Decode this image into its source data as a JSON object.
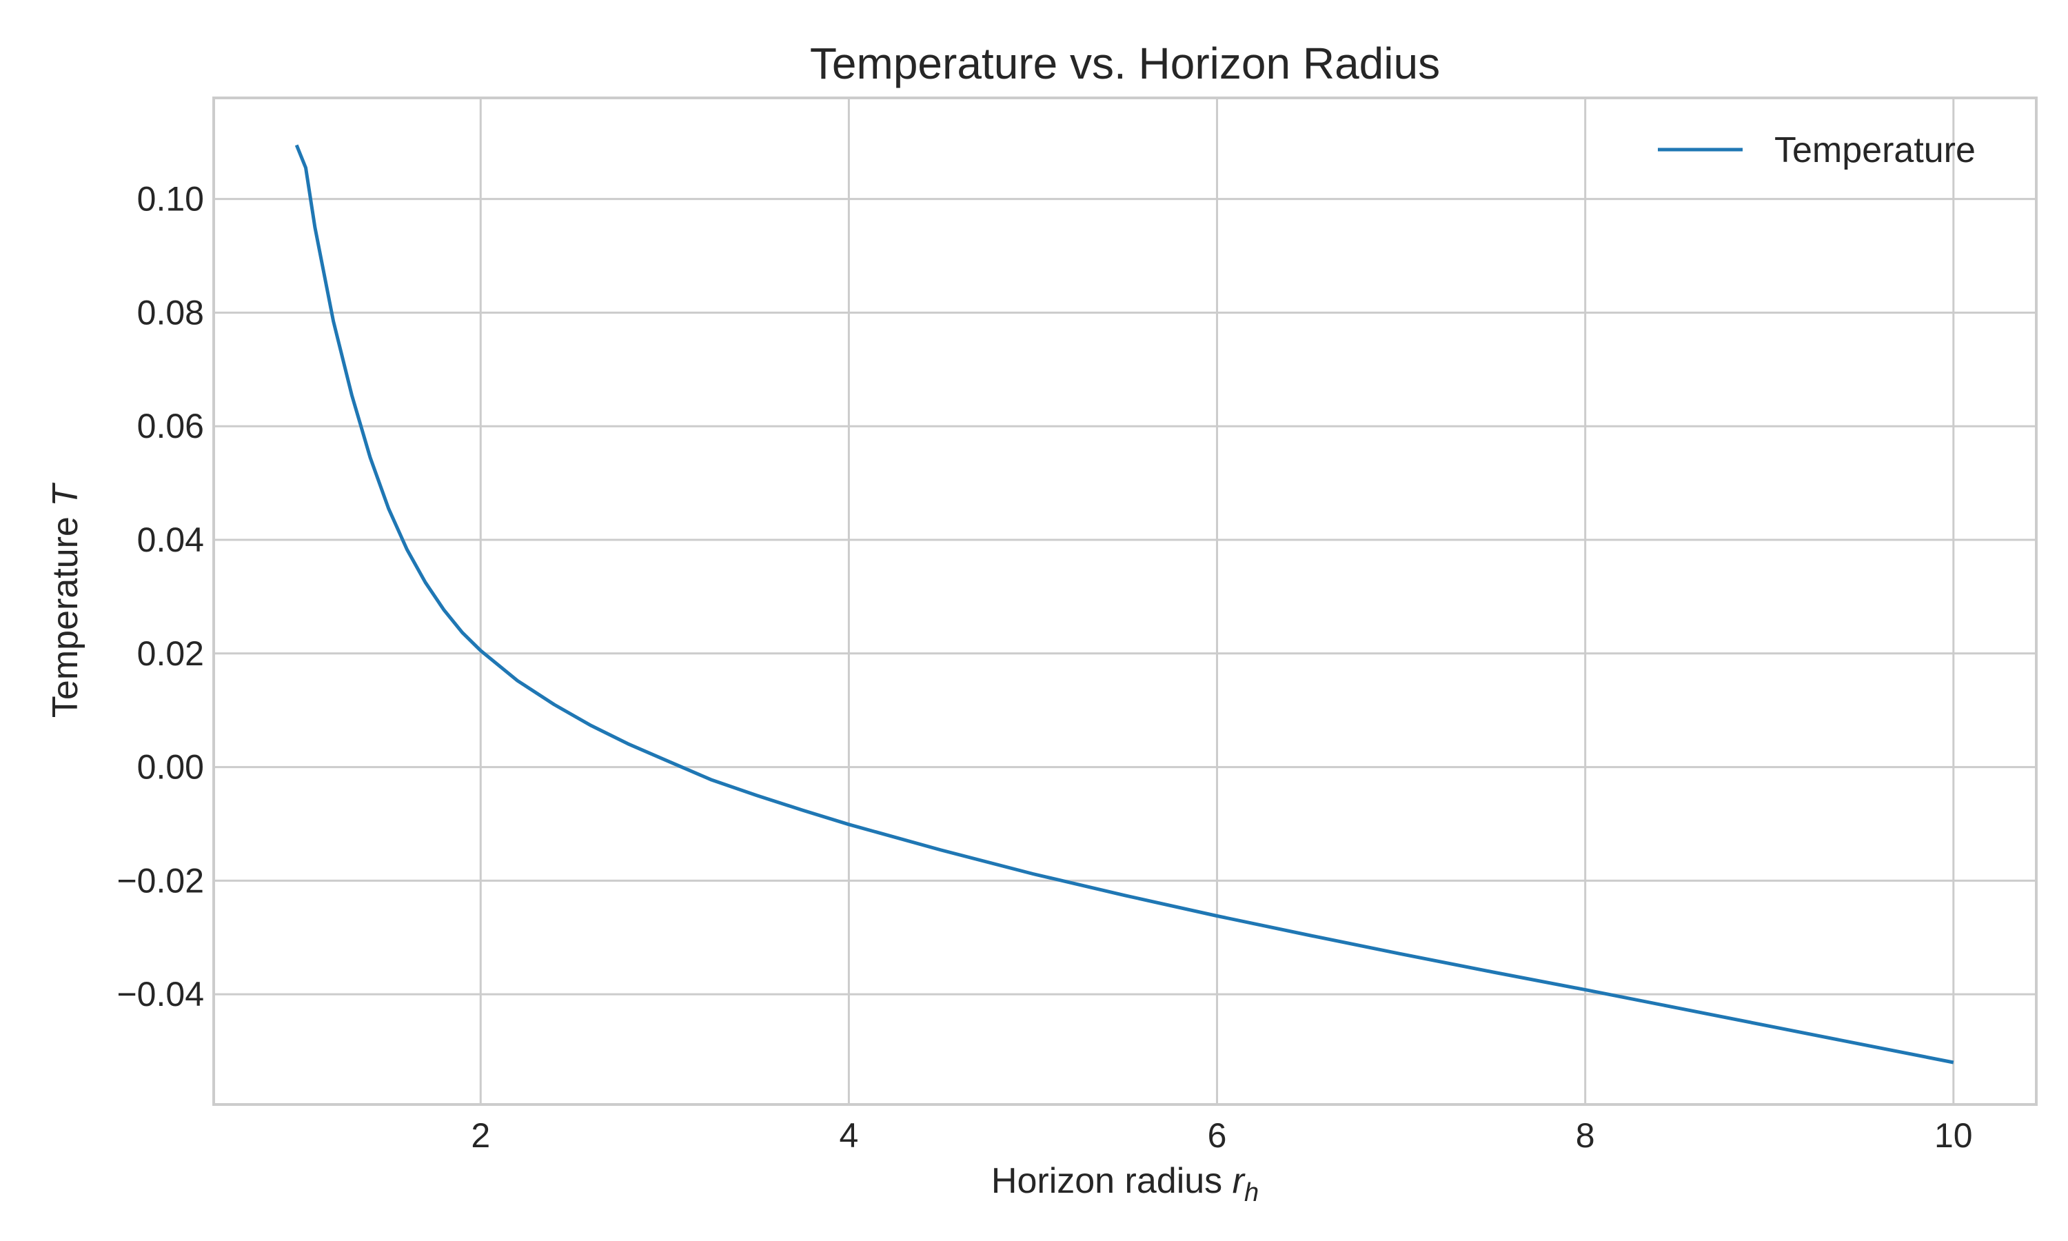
{
  "chart_data": {
    "type": "line",
    "title": "Temperature vs. Horizon Radius",
    "xlabel_main": "Horizon radius ",
    "xlabel_symbol": "r",
    "xlabel_subscript": "h",
    "ylabel_main": "Temperature ",
    "ylabel_symbol": "T",
    "xlim": [
      0.55,
      10.45
    ],
    "ylim": [
      -0.0594,
      0.1178
    ],
    "x_ticks": [
      {
        "value": 2,
        "label": "2"
      },
      {
        "value": 4,
        "label": "4"
      },
      {
        "value": 6,
        "label": "6"
      },
      {
        "value": 8,
        "label": "8"
      },
      {
        "value": 10,
        "label": "10"
      }
    ],
    "y_ticks": [
      {
        "value": 0.1,
        "label": "0.10"
      },
      {
        "value": 0.08,
        "label": "0.08"
      },
      {
        "value": 0.06,
        "label": "0.06"
      },
      {
        "value": 0.04,
        "label": "0.04"
      },
      {
        "value": 0.02,
        "label": "0.02"
      },
      {
        "value": 0.0,
        "label": "0.00"
      },
      {
        "value": -0.02,
        "label": "−0.02"
      },
      {
        "value": -0.04,
        "label": "−0.04"
      }
    ],
    "grid": true,
    "legend_position": "top-right",
    "series": [
      {
        "name": "Temperature",
        "color": "#1f77b4",
        "x": [
          1.0,
          1.05,
          1.1,
          1.2,
          1.3,
          1.4,
          1.5,
          1.6,
          1.7,
          1.8,
          1.9,
          2.0,
          2.2,
          2.4,
          2.6,
          2.8,
          3.0,
          3.25,
          3.5,
          3.75,
          4.0,
          4.5,
          5.0,
          5.5,
          6.0,
          6.5,
          7.0,
          7.5,
          8.0,
          8.5,
          9.0,
          9.5,
          10.0
        ],
        "y": [
          0.1095,
          0.1055,
          0.095,
          0.0785,
          0.0655,
          0.0545,
          0.0455,
          0.0383,
          0.0325,
          0.0277,
          0.0237,
          0.0205,
          0.0152,
          0.011,
          0.0073,
          0.0041,
          0.0013,
          -0.0022,
          -0.005,
          -0.0076,
          -0.0101,
          -0.0146,
          -0.0188,
          -0.0226,
          -0.0262,
          -0.0296,
          -0.0329,
          -0.0361,
          -0.0392,
          -0.0424,
          -0.0456,
          -0.0488,
          -0.052
        ]
      }
    ]
  }
}
